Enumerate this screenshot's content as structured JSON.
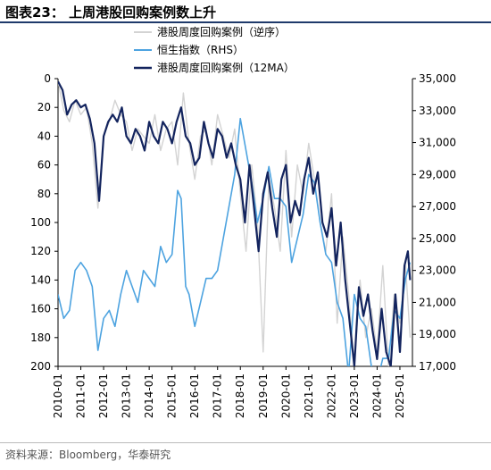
{
  "figure": {
    "title": "图表23： 上周港股回购案例数上升",
    "source": "资料来源：Bloomberg，华泰研究"
  },
  "chart_data": {
    "type": "line",
    "x_ticks": [
      "2010-01",
      "2011-01",
      "2012-01",
      "2013-01",
      "2014-01",
      "2015-01",
      "2016-01",
      "2017-01",
      "2018-01",
      "2019-01",
      "2020-01",
      "2021-01",
      "2022-01",
      "2023-01",
      "2024-01",
      "2025-01"
    ],
    "x_range": [
      "2010-01",
      "2025-06"
    ],
    "y_left": {
      "range": [
        0,
        200
      ],
      "inverted": true,
      "ticks": [
        0,
        20,
        40,
        60,
        80,
        100,
        120,
        140,
        160,
        180,
        200
      ]
    },
    "y_right": {
      "range": [
        17000,
        35000
      ],
      "ticks": [
        "35,000",
        "33,000",
        "31,000",
        "29,000",
        "27,000",
        "25,000",
        "23,000",
        "21,000",
        "19,000",
        "17,000"
      ]
    },
    "series": [
      {
        "name": "港股周度回购案例（逆序）",
        "color": "#d3d3d3",
        "axis": "left",
        "values": [
          [
            2010.0,
            2
          ],
          [
            2010.25,
            22
          ],
          [
            2010.5,
            30
          ],
          [
            2010.75,
            15
          ],
          [
            2011.0,
            25
          ],
          [
            2011.25,
            20
          ],
          [
            2011.5,
            45
          ],
          [
            2011.75,
            90
          ],
          [
            2012.0,
            40
          ],
          [
            2012.25,
            30
          ],
          [
            2012.5,
            15
          ],
          [
            2012.75,
            25
          ],
          [
            2013.0,
            30
          ],
          [
            2013.25,
            50
          ],
          [
            2013.5,
            35
          ],
          [
            2013.75,
            40
          ],
          [
            2014.0,
            45
          ],
          [
            2014.25,
            25
          ],
          [
            2014.5,
            50
          ],
          [
            2014.75,
            35
          ],
          [
            2015.0,
            30
          ],
          [
            2015.25,
            60
          ],
          [
            2015.5,
            10
          ],
          [
            2015.75,
            45
          ],
          [
            2016.0,
            70
          ],
          [
            2016.25,
            40
          ],
          [
            2016.5,
            35
          ],
          [
            2016.75,
            60
          ],
          [
            2017.0,
            25
          ],
          [
            2017.25,
            40
          ],
          [
            2017.5,
            55
          ],
          [
            2017.75,
            35
          ],
          [
            2018.0,
            80
          ],
          [
            2018.25,
            120
          ],
          [
            2018.5,
            60
          ],
          [
            2018.75,
            100
          ],
          [
            2019.0,
            190
          ],
          [
            2019.25,
            70
          ],
          [
            2019.5,
            90
          ],
          [
            2019.75,
            120
          ],
          [
            2020.0,
            50
          ],
          [
            2020.25,
            110
          ],
          [
            2020.5,
            60
          ],
          [
            2020.75,
            80
          ],
          [
            2021.0,
            45
          ],
          [
            2021.25,
            70
          ],
          [
            2021.5,
            100
          ],
          [
            2021.75,
            120
          ],
          [
            2022.0,
            80
          ],
          [
            2022.25,
            170
          ],
          [
            2022.5,
            110
          ],
          [
            2022.75,
            150
          ],
          [
            2023.0,
            200
          ],
          [
            2023.25,
            140
          ],
          [
            2023.5,
            180
          ],
          [
            2023.75,
            160
          ],
          [
            2024.0,
            190
          ],
          [
            2024.25,
            130
          ],
          [
            2024.5,
            200
          ],
          [
            2024.75,
            150
          ],
          [
            2025.0,
            170
          ],
          [
            2025.25,
            130
          ],
          [
            2025.45,
            180
          ]
        ]
      },
      {
        "name": "恒生指数（RHS）",
        "color": "#4da3e0",
        "axis": "right",
        "values": [
          [
            2010.0,
            21500
          ],
          [
            2010.25,
            20000
          ],
          [
            2010.5,
            20500
          ],
          [
            2010.75,
            23000
          ],
          [
            2011.0,
            23500
          ],
          [
            2011.25,
            23000
          ],
          [
            2011.5,
            22000
          ],
          [
            2011.75,
            18000
          ],
          [
            2012.0,
            20000
          ],
          [
            2012.25,
            20500
          ],
          [
            2012.5,
            19500
          ],
          [
            2012.75,
            21500
          ],
          [
            2013.0,
            23000
          ],
          [
            2013.25,
            22000
          ],
          [
            2013.5,
            21000
          ],
          [
            2013.75,
            23000
          ],
          [
            2014.0,
            22500
          ],
          [
            2014.25,
            22000
          ],
          [
            2014.5,
            24500
          ],
          [
            2014.75,
            23500
          ],
          [
            2015.0,
            24000
          ],
          [
            2015.25,
            28000
          ],
          [
            2015.4,
            27500
          ],
          [
            2015.6,
            22000
          ],
          [
            2015.75,
            21500
          ],
          [
            2016.0,
            19500
          ],
          [
            2016.25,
            21000
          ],
          [
            2016.5,
            22500
          ],
          [
            2016.75,
            22500
          ],
          [
            2017.0,
            23000
          ],
          [
            2017.25,
            25000
          ],
          [
            2017.5,
            27000
          ],
          [
            2017.75,
            29000
          ],
          [
            2018.0,
            32500
          ],
          [
            2018.25,
            30500
          ],
          [
            2018.5,
            28500
          ],
          [
            2018.75,
            26000
          ],
          [
            2019.0,
            27500
          ],
          [
            2019.25,
            29500
          ],
          [
            2019.5,
            27500
          ],
          [
            2019.75,
            27500
          ],
          [
            2020.0,
            27000
          ],
          [
            2020.25,
            23500
          ],
          [
            2020.5,
            25000
          ],
          [
            2020.75,
            26500
          ],
          [
            2021.0,
            29000
          ],
          [
            2021.25,
            28500
          ],
          [
            2021.5,
            26000
          ],
          [
            2021.75,
            24000
          ],
          [
            2022.0,
            23500
          ],
          [
            2022.25,
            21000
          ],
          [
            2022.5,
            20000
          ],
          [
            2022.75,
            16500
          ],
          [
            2023.0,
            21500
          ],
          [
            2023.25,
            20000
          ],
          [
            2023.5,
            19500
          ],
          [
            2023.75,
            17000
          ],
          [
            2024.0,
            16000
          ],
          [
            2024.25,
            17500
          ],
          [
            2024.5,
            17500
          ],
          [
            2024.75,
            20500
          ],
          [
            2025.0,
            20000
          ],
          [
            2025.25,
            22500
          ],
          [
            2025.45,
            23500
          ]
        ]
      },
      {
        "name": "港股周度回购案例（12MA）",
        "color": "#13245e",
        "axis": "left",
        "values": [
          [
            2010.0,
            2
          ],
          [
            2010.2,
            8
          ],
          [
            2010.4,
            25
          ],
          [
            2010.6,
            18
          ],
          [
            2010.8,
            15
          ],
          [
            2011.0,
            20
          ],
          [
            2011.2,
            18
          ],
          [
            2011.4,
            28
          ],
          [
            2011.6,
            45
          ],
          [
            2011.8,
            85
          ],
          [
            2012.0,
            40
          ],
          [
            2012.2,
            30
          ],
          [
            2012.4,
            25
          ],
          [
            2012.6,
            30
          ],
          [
            2012.8,
            20
          ],
          [
            2013.0,
            40
          ],
          [
            2013.2,
            45
          ],
          [
            2013.4,
            35
          ],
          [
            2013.6,
            40
          ],
          [
            2013.8,
            50
          ],
          [
            2014.0,
            30
          ],
          [
            2014.2,
            40
          ],
          [
            2014.4,
            45
          ],
          [
            2014.6,
            30
          ],
          [
            2014.8,
            35
          ],
          [
            2015.0,
            45
          ],
          [
            2015.2,
            30
          ],
          [
            2015.4,
            20
          ],
          [
            2015.6,
            40
          ],
          [
            2015.8,
            45
          ],
          [
            2016.0,
            60
          ],
          [
            2016.2,
            55
          ],
          [
            2016.4,
            30
          ],
          [
            2016.6,
            45
          ],
          [
            2016.8,
            55
          ],
          [
            2017.0,
            35
          ],
          [
            2017.2,
            40
          ],
          [
            2017.4,
            55
          ],
          [
            2017.6,
            45
          ],
          [
            2017.8,
            60
          ],
          [
            2018.0,
            70
          ],
          [
            2018.2,
            100
          ],
          [
            2018.4,
            60
          ],
          [
            2018.6,
            90
          ],
          [
            2018.8,
            120
          ],
          [
            2019.0,
            80
          ],
          [
            2019.2,
            65
          ],
          [
            2019.4,
            90
          ],
          [
            2019.6,
            110
          ],
          [
            2019.8,
            70
          ],
          [
            2020.0,
            60
          ],
          [
            2020.2,
            100
          ],
          [
            2020.4,
            85
          ],
          [
            2020.6,
            95
          ],
          [
            2020.8,
            70
          ],
          [
            2021.0,
            55
          ],
          [
            2021.2,
            80
          ],
          [
            2021.4,
            65
          ],
          [
            2021.6,
            100
          ],
          [
            2021.8,
            110
          ],
          [
            2022.0,
            90
          ],
          [
            2022.2,
            130
          ],
          [
            2022.4,
            100
          ],
          [
            2022.6,
            140
          ],
          [
            2022.8,
            170
          ],
          [
            2023.0,
            200
          ],
          [
            2023.2,
            145
          ],
          [
            2023.4,
            165
          ],
          [
            2023.6,
            150
          ],
          [
            2023.8,
            175
          ],
          [
            2024.0,
            195
          ],
          [
            2024.2,
            160
          ],
          [
            2024.4,
            190
          ],
          [
            2024.6,
            200
          ],
          [
            2024.8,
            150
          ],
          [
            2025.0,
            190
          ],
          [
            2025.2,
            130
          ],
          [
            2025.35,
            120
          ],
          [
            2025.45,
            140
          ]
        ]
      }
    ],
    "legend": "top-center"
  }
}
